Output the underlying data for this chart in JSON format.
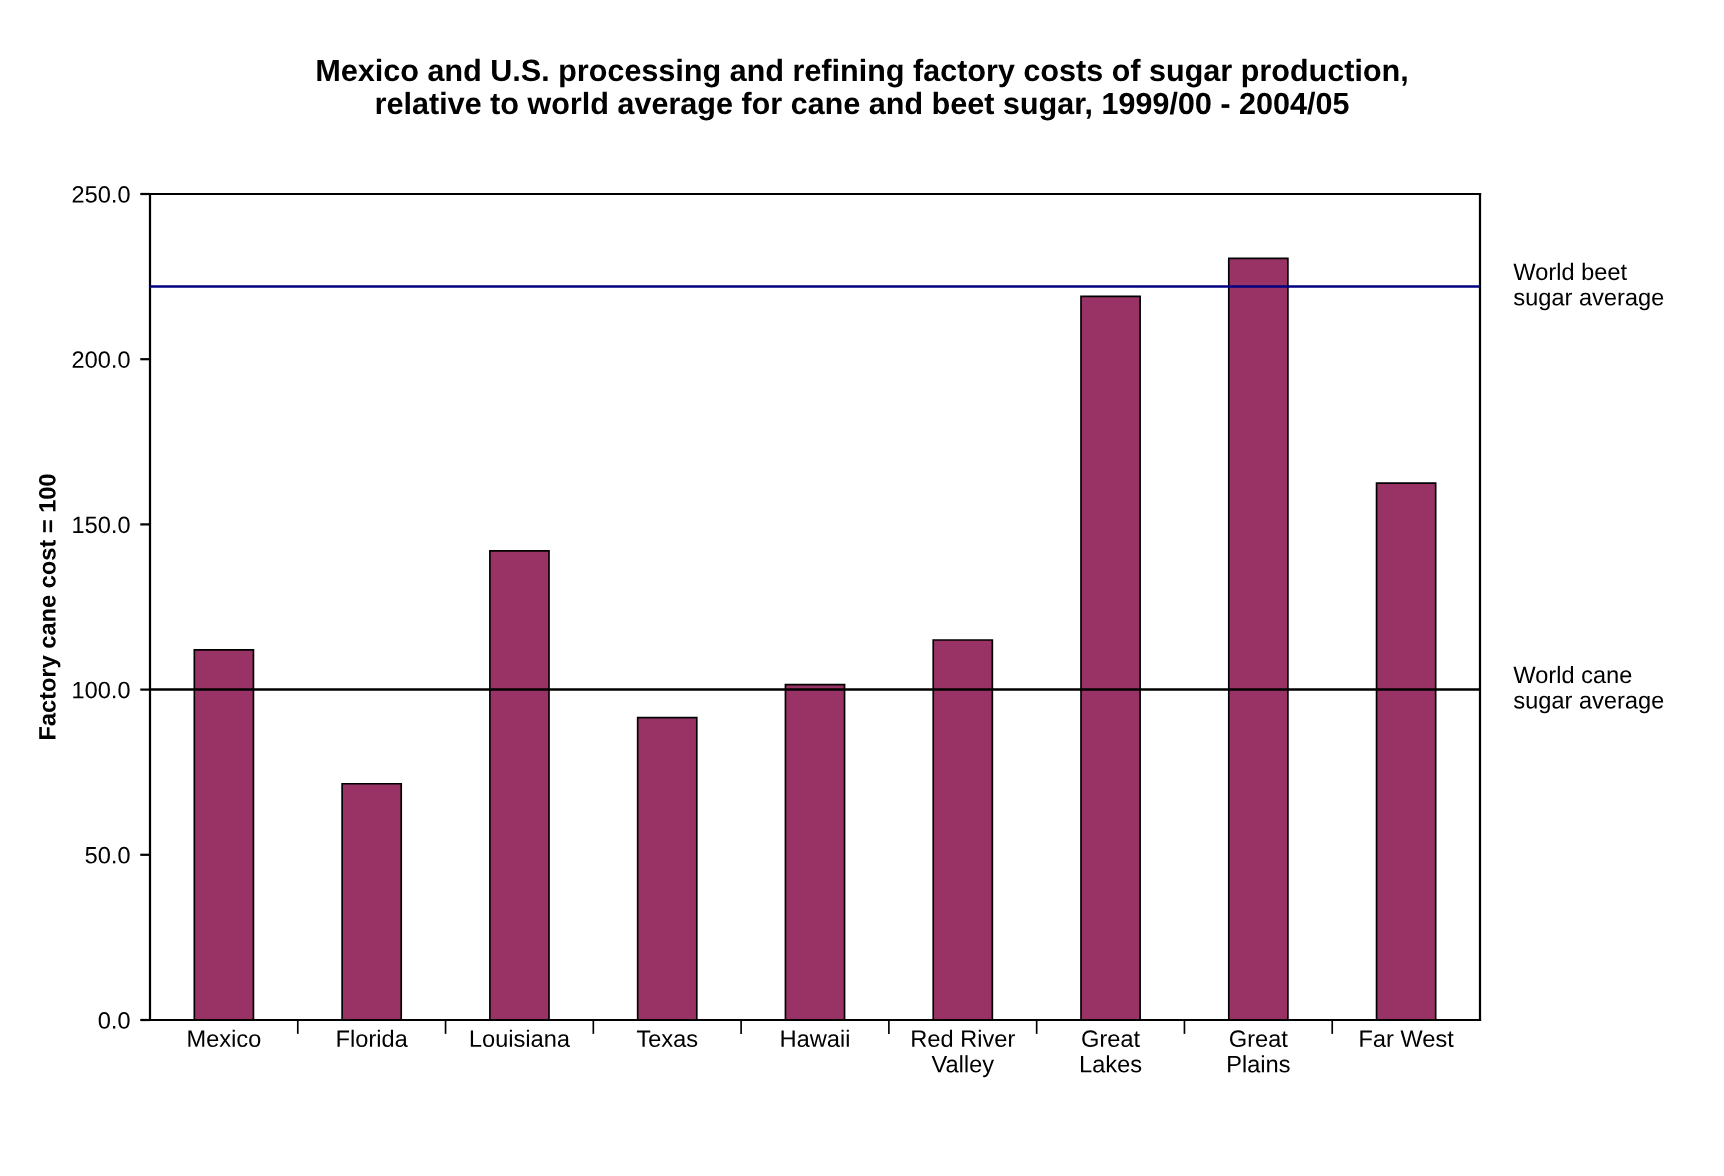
{
  "chart_data": {
    "type": "bar",
    "title": "Mexico and U.S. processing and refining factory costs of sugar production,\nrelative to world average for cane and beet sugar, 1999/00 - 2004/05",
    "ylabel": "Factory cane cost = 100",
    "categories": [
      "Mexico",
      "Florida",
      "Louisiana",
      "Texas",
      "Hawaii",
      "Red River\nValley",
      "Great\nLakes",
      "Great\nPlains",
      "Far West"
    ],
    "values": [
      112,
      71.5,
      142,
      91.5,
      101.5,
      115,
      219,
      230.5,
      162.5
    ],
    "color": "#993366",
    "ylim": [
      0,
      250
    ],
    "yticks": [
      {
        "value": 0,
        "label": "0.0"
      },
      {
        "value": 50,
        "label": "50.0"
      },
      {
        "value": 100,
        "label": "100.0"
      },
      {
        "value": 150,
        "label": "150.0"
      },
      {
        "value": 200,
        "label": "200.0"
      },
      {
        "value": 250,
        "label": "250.0"
      }
    ],
    "ref_lines": [
      {
        "axis": "y",
        "value": 222,
        "label": "World beet\nsugar average",
        "color": "#000080"
      },
      {
        "axis": "y",
        "value": 100,
        "label": "World cane\nsugar average",
        "color": "#000000"
      }
    ],
    "grid": false,
    "legend": false
  }
}
